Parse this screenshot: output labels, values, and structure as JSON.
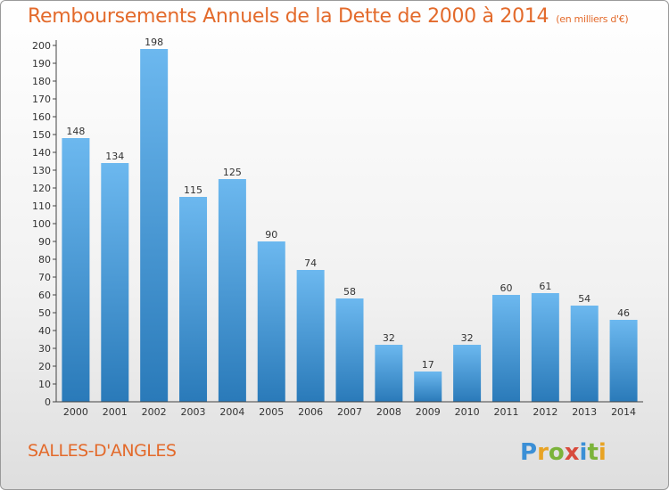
{
  "title": "Remboursements Annuels de la Dette de 2000 à 2014",
  "subtitle": "(en milliers d'€)",
  "commune": "SALLES-D'ANGLES",
  "logo_text": "Proxiti",
  "colors": {
    "title": "#e36a2b",
    "bar_light": "#6cb8ef",
    "bar_dark": "#2a7ab9"
  },
  "chart_data": {
    "type": "bar",
    "title": "Remboursements Annuels de la Dette de 2000 à 2014",
    "subtitle": "(en milliers d'€)",
    "categories": [
      "2000",
      "2001",
      "2002",
      "2003",
      "2004",
      "2005",
      "2006",
      "2007",
      "2008",
      "2009",
      "2010",
      "2011",
      "2012",
      "2013",
      "2014"
    ],
    "values": [
      148,
      134,
      198,
      115,
      125,
      90,
      74,
      58,
      32,
      17,
      32,
      60,
      61,
      54,
      46
    ],
    "ylim": [
      0,
      200
    ],
    "yticks": [
      0,
      10,
      20,
      30,
      40,
      50,
      60,
      70,
      80,
      90,
      100,
      110,
      120,
      130,
      140,
      150,
      160,
      170,
      180,
      190,
      200
    ],
    "grid": false,
    "legend": "none"
  }
}
